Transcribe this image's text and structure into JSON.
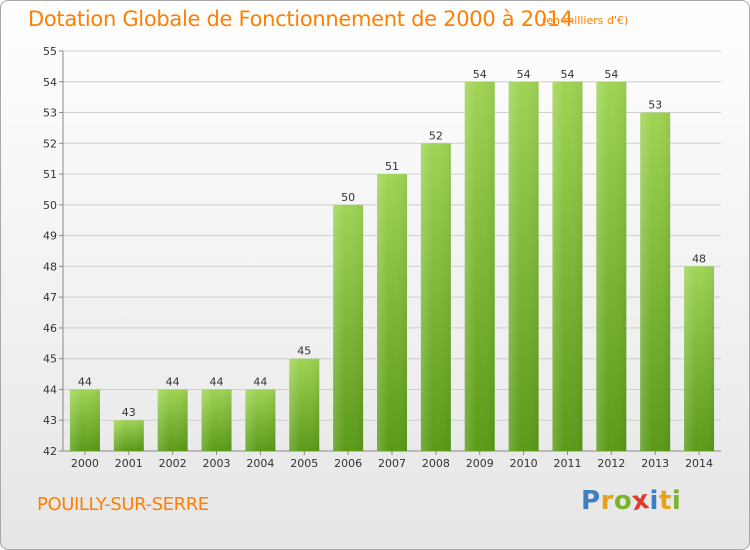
{
  "title": "Dotation Globale de Fonctionnement de 2000 à 2014",
  "subtitle": "(en milliers d'€)",
  "commune": "POUILLY-SUR-SERRE",
  "logo": {
    "letters": [
      "P",
      "r",
      "o",
      "x",
      "i",
      "t",
      "i"
    ],
    "colors": [
      "#3d7fc4",
      "#e8a21a",
      "#7ab32e",
      "#e23a2b",
      "#3d7fc4",
      "#e8a21a",
      "#7ab32e"
    ]
  },
  "colors": {
    "accent": "#ff7f00",
    "bar_top": "#9fd454",
    "bar_bottom": "#5a9a18",
    "grid": "#cfcfcf",
    "text": "#333333"
  },
  "chart_data": {
    "type": "bar",
    "title": "Dotation Globale de Fonctionnement de 2000 à 2014",
    "subtitle": "(en milliers d'€)",
    "categories": [
      "2000",
      "2001",
      "2002",
      "2003",
      "2004",
      "2005",
      "2006",
      "2007",
      "2008",
      "2009",
      "2010",
      "2011",
      "2012",
      "2013",
      "2014"
    ],
    "values": [
      44,
      43,
      44,
      44,
      44,
      45,
      50,
      51,
      52,
      54,
      54,
      54,
      54,
      53,
      48
    ],
    "ylim": [
      42,
      55
    ],
    "yticks": [
      42,
      43,
      44,
      45,
      46,
      47,
      48,
      49,
      50,
      51,
      52,
      53,
      54,
      55
    ],
    "grid": true,
    "data_labels": true
  }
}
